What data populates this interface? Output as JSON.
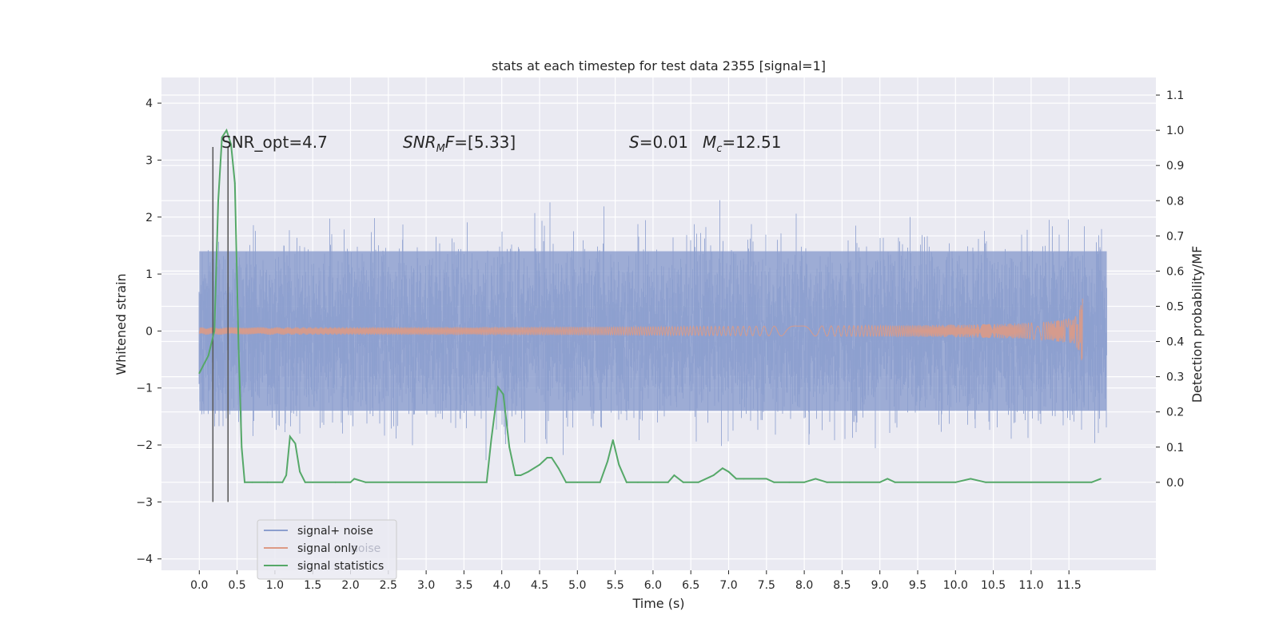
{
  "chart_data": {
    "type": "line",
    "title": "stats at each timestep for test data 2355 [signal=1]",
    "xlabel": "Time (s)",
    "ylabel": "Whitened strain",
    "y2label": "Detection probability/MF",
    "xlim": [
      -0.5,
      12.65
    ],
    "ylim": [
      -4.2,
      4.45
    ],
    "y2lim": [
      -0.25,
      1.15
    ],
    "x_ticks": [
      0.0,
      0.5,
      1.0,
      1.5,
      2.0,
      2.5,
      3.0,
      3.5,
      4.0,
      4.5,
      5.0,
      5.5,
      6.0,
      6.5,
      7.0,
      7.5,
      8.0,
      8.5,
      9.0,
      9.5,
      10.0,
      10.5,
      11.0,
      11.5
    ],
    "x_tick_labels": [
      "0.0",
      "0.5",
      "1.0",
      "1.5",
      "2.0",
      "2.5",
      "3.0",
      "3.5",
      "4.0",
      "4.5",
      "5.0",
      "5.5",
      "6.0",
      "6.5",
      "7.0",
      "7.5",
      "8.0",
      "8.5",
      "9.0",
      "9.5",
      "10.0",
      "10.5",
      "11.0",
      "11.5"
    ],
    "y_ticks": [
      4,
      3,
      2,
      1,
      0,
      -1,
      -2,
      -3,
      -4
    ],
    "y_tick_labels": [
      "4",
      "3",
      "2",
      "1",
      "0",
      "−1",
      "−2",
      "−3",
      "−4"
    ],
    "y2_ticks": [
      1.1,
      1.0,
      0.9,
      0.8,
      0.7,
      0.6,
      0.5,
      0.4,
      0.3,
      0.2,
      0.1,
      0.0
    ],
    "y2_tick_labels": [
      "1.1",
      "1.0",
      "0.9",
      "0.8",
      "0.7",
      "0.6",
      "0.5",
      "0.4",
      "0.3",
      "0.2",
      "0.1",
      "0.0"
    ],
    "grid": true,
    "legend_position": "lower-left",
    "series": [
      {
        "name": "signal+ noise",
        "axis": "left",
        "style": "dense noise band",
        "x_range": [
          0.0,
          12.0
        ],
        "band_envelope": {
          "lower": -2.0,
          "upper": 2.0
        },
        "color": "#8c9fce"
      },
      {
        "name": "signal only",
        "axis": "left",
        "style": "chirp",
        "x_range": [
          0.0,
          11.68
        ],
        "chirp_peak_amplitude": 0.8,
        "color": "#dd9a85"
      },
      {
        "name": "signal statistics",
        "axis": "right",
        "style": "line",
        "color": "#55a868",
        "x": [
          0.0,
          0.12,
          0.2,
          0.25,
          0.3,
          0.36,
          0.42,
          0.47,
          0.52,
          0.56,
          0.6,
          0.7,
          0.9,
          1.1,
          1.15,
          1.2,
          1.27,
          1.33,
          1.4,
          1.5,
          1.8,
          2.0,
          2.05,
          2.2,
          2.5,
          3.0,
          3.5,
          3.8,
          3.86,
          3.95,
          4.02,
          4.1,
          4.18,
          4.25,
          4.35,
          4.5,
          4.6,
          4.66,
          4.75,
          4.85,
          5.0,
          5.3,
          5.4,
          5.47,
          5.55,
          5.65,
          5.8,
          6.0,
          6.2,
          6.28,
          6.4,
          6.6,
          6.8,
          6.92,
          7.0,
          7.1,
          7.2,
          7.4,
          7.5,
          7.6,
          7.8,
          8.0,
          8.15,
          8.3,
          8.6,
          9.0,
          9.1,
          9.2,
          9.5,
          10.0,
          10.2,
          10.4,
          11.0,
          11.5,
          11.8,
          11.92
        ],
        "values": [
          0.31,
          0.36,
          0.43,
          0.8,
          0.98,
          1.0,
          0.96,
          0.85,
          0.38,
          0.1,
          0.0,
          0.0,
          0.0,
          0.0,
          0.02,
          0.13,
          0.11,
          0.03,
          0.0,
          0.0,
          0.0,
          0.0,
          0.01,
          0.0,
          0.0,
          0.0,
          0.0,
          0.0,
          0.12,
          0.27,
          0.25,
          0.1,
          0.02,
          0.02,
          0.03,
          0.05,
          0.07,
          0.07,
          0.04,
          0.0,
          0.0,
          0.0,
          0.06,
          0.12,
          0.05,
          0.0,
          0.0,
          0.0,
          0.0,
          0.02,
          0.0,
          0.0,
          0.02,
          0.04,
          0.03,
          0.01,
          0.01,
          0.01,
          0.01,
          0.0,
          0.0,
          0.0,
          0.01,
          0.0,
          0.0,
          0.0,
          0.01,
          0.0,
          0.0,
          0.0,
          0.01,
          0.0,
          0.0,
          0.0,
          0.0,
          0.01
        ]
      }
    ],
    "vertical_lines": [
      {
        "x": 0.18,
        "y_range": [
          -3.0,
          3.23
        ],
        "color": "#555555"
      },
      {
        "x": 0.38,
        "y_range": [
          -3.0,
          3.23
        ],
        "color": "#555555"
      }
    ],
    "annotations": {
      "snr_opt": {
        "text": "SNR_opt=4.7",
        "x": 0.2,
        "y": 3.2
      },
      "snr_mf": {
        "prefix": "SNR",
        "sub": "M",
        "suffix": "F=[5.33]",
        "x": 2.6,
        "y": 3.2
      },
      "s_mc": {
        "s_symbol": "S",
        "s_value": "=0.01",
        "m_symbol": "M",
        "m_sub": "c",
        "m_value": "=12.51",
        "x": 5.6,
        "y": 3.2
      }
    },
    "legend": [
      {
        "label": "signal+ noise",
        "color": "#8c9fce"
      },
      {
        "label": "signal only",
        "color": "#dd9a85"
      },
      {
        "label": "signal statistics",
        "color": "#55a868"
      }
    ],
    "legend_ghost_text": "noise"
  }
}
